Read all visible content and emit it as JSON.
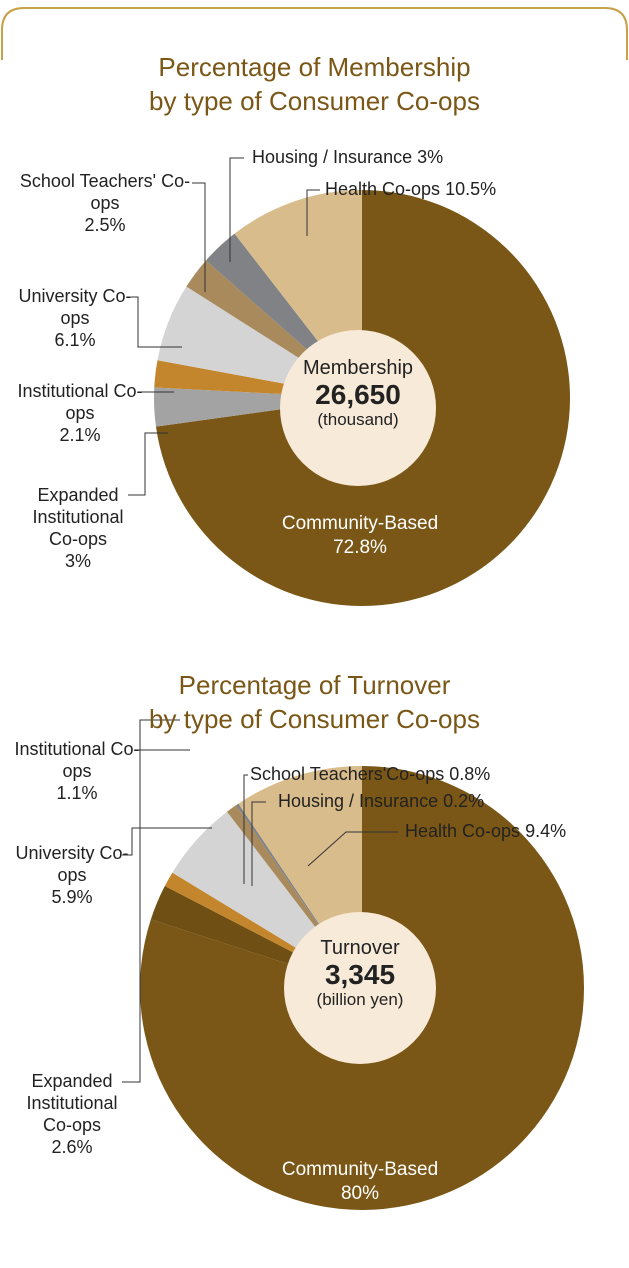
{
  "chart_data": [
    {
      "type": "pie",
      "title": [
        "Percentage of Membership",
        "by type of Consumer Co-ops"
      ],
      "categories": [
        "Community-Based",
        "Expanded Institutional Co-ops",
        "Institutional Co-ops",
        "University Co-ops",
        "School Teachers' Co-ops",
        "Housing / Insurance",
        "Health Co-ops"
      ],
      "values": [
        72.8,
        3,
        2.1,
        6.1,
        2.5,
        3,
        10.5
      ],
      "value_labels": [
        "72.8%",
        "3%",
        "2.1%",
        "6.1%",
        "2.5%",
        "3%",
        "10.5%"
      ],
      "colors": [
        "#7a5716",
        "#a3a3a3",
        "#c4862d",
        "#d4d4d4",
        "#a88a5c",
        "#808285",
        "#d9bc8c"
      ],
      "center_label": "Membership",
      "center_value": "26,650",
      "center_unit": "(thousand)"
    },
    {
      "type": "pie",
      "title": [
        "Percentage of Turnover",
        "by type of Consumer Co-ops"
      ],
      "categories": [
        "Community-Based",
        "Expanded Institutional Co-ops",
        "Institutional Co-ops",
        "University Co-ops",
        "School Teachers'Co-ops",
        "Housing / Insurance",
        "Health Co-ops"
      ],
      "values": [
        80,
        2.6,
        1.1,
        5.9,
        0.8,
        0.2,
        9.4
      ],
      "value_labels": [
        "80%",
        "2.6%",
        "1.1%",
        "5.9%",
        "0.8%",
        "0.2%",
        "9.4%"
      ],
      "colors": [
        "#7a5716",
        "#6f4f13",
        "#c4862d",
        "#d4d4d4",
        "#a88a5c",
        "#808285",
        "#d9bc8c"
      ],
      "center_label": "Turnover",
      "center_value": "3,345",
      "center_unit": "(billion yen)"
    }
  ]
}
